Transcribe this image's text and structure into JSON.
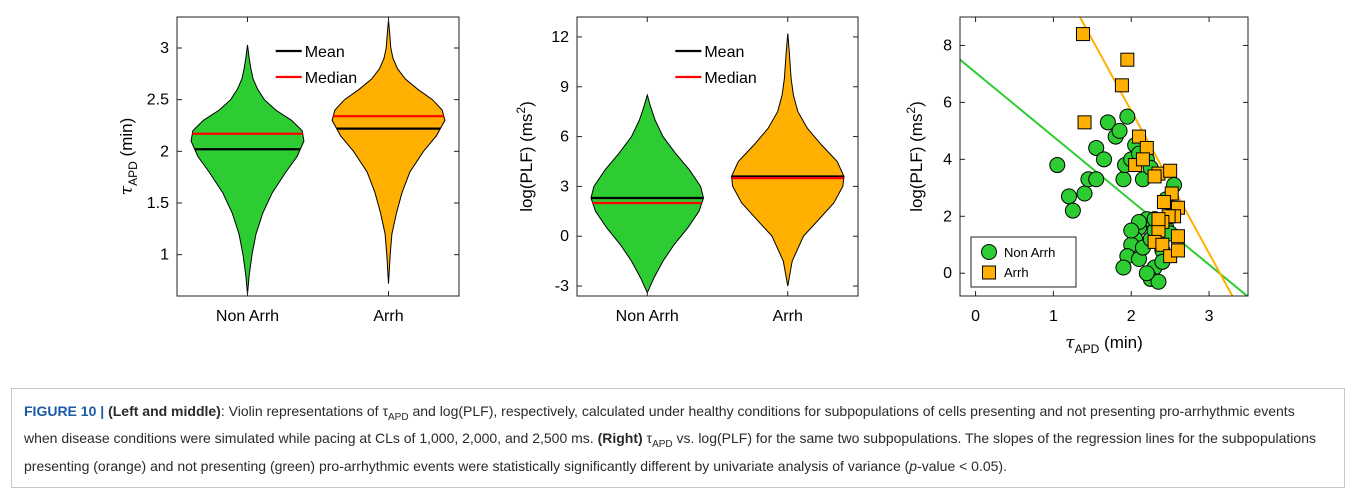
{
  "chart_data": [
    {
      "type": "violin",
      "categories": [
        "Non Arrh",
        "Arrh"
      ],
      "ylabel_symbol": "τ",
      "ylabel_sub": "APD",
      "ylabel_unit": " (min)",
      "ylim": [
        0.6,
        3.3
      ],
      "yticks": [
        1,
        1.5,
        2,
        2.5,
        3
      ],
      "ytick_labels": [
        "1",
        "1.5",
        "2",
        "2.5",
        "3"
      ],
      "series": [
        {
          "name": "Non Arrh",
          "color": "#2ecc33",
          "min": 0.62,
          "max": 3.03,
          "mean": 2.02,
          "median": 2.17,
          "profile": [
            [
              0.62,
              0.0
            ],
            [
              0.8,
              0.03
            ],
            [
              1.0,
              0.08
            ],
            [
              1.2,
              0.15
            ],
            [
              1.4,
              0.27
            ],
            [
              1.6,
              0.44
            ],
            [
              1.8,
              0.68
            ],
            [
              1.95,
              0.88
            ],
            [
              2.1,
              1.0
            ],
            [
              2.2,
              0.97
            ],
            [
              2.3,
              0.78
            ],
            [
              2.4,
              0.5
            ],
            [
              2.5,
              0.3
            ],
            [
              2.6,
              0.18
            ],
            [
              2.7,
              0.1
            ],
            [
              2.8,
              0.06
            ],
            [
              2.9,
              0.03
            ],
            [
              3.03,
              0.0
            ]
          ]
        },
        {
          "name": "Arrh",
          "color": "#ffb000",
          "min": 0.72,
          "max": 3.27,
          "mean": 2.22,
          "median": 2.34,
          "profile": [
            [
              0.72,
              0.0
            ],
            [
              1.0,
              0.03
            ],
            [
              1.2,
              0.06
            ],
            [
              1.4,
              0.14
            ],
            [
              1.6,
              0.24
            ],
            [
              1.8,
              0.38
            ],
            [
              2.0,
              0.62
            ],
            [
              2.15,
              0.85
            ],
            [
              2.3,
              1.0
            ],
            [
              2.4,
              0.95
            ],
            [
              2.5,
              0.78
            ],
            [
              2.6,
              0.52
            ],
            [
              2.7,
              0.3
            ],
            [
              2.8,
              0.16
            ],
            [
              2.9,
              0.08
            ],
            [
              3.0,
              0.04
            ],
            [
              3.15,
              0.02
            ],
            [
              3.27,
              0.0
            ]
          ]
        }
      ],
      "legend": [
        {
          "label": "Mean",
          "color": "#000000"
        },
        {
          "label": "Median",
          "color": "#ff0000"
        }
      ],
      "legend_position": "top"
    },
    {
      "type": "violin",
      "categories": [
        "Non Arrh",
        "Arrh"
      ],
      "ylabel": "log(PLF) (ms",
      "ylabel_sup": "2",
      "ylabel_end": ")",
      "ylim": [
        -3.6,
        13.2
      ],
      "yticks": [
        -3,
        0,
        3,
        6,
        9,
        12
      ],
      "ytick_labels": [
        "-3",
        "0",
        "3",
        "6",
        "9",
        "12"
      ],
      "series": [
        {
          "name": "Non Arrh",
          "color": "#2ecc33",
          "min": -3.4,
          "max": 8.5,
          "mean": 2.3,
          "median": 2.0,
          "profile": [
            [
              -3.4,
              0.0
            ],
            [
              -2.5,
              0.12
            ],
            [
              -1.5,
              0.28
            ],
            [
              -0.5,
              0.48
            ],
            [
              0.5,
              0.72
            ],
            [
              1.5,
              0.92
            ],
            [
              2.3,
              1.0
            ],
            [
              3.0,
              0.95
            ],
            [
              4.0,
              0.75
            ],
            [
              5.0,
              0.5
            ],
            [
              6.0,
              0.28
            ],
            [
              7.0,
              0.14
            ],
            [
              7.8,
              0.06
            ],
            [
              8.5,
              0.0
            ]
          ]
        },
        {
          "name": "Arrh",
          "color": "#ffb000",
          "min": -3.0,
          "max": 12.2,
          "mean": 3.6,
          "median": 3.5,
          "profile": [
            [
              -3.0,
              0.0
            ],
            [
              -1.5,
              0.08
            ],
            [
              0.0,
              0.28
            ],
            [
              1.0,
              0.55
            ],
            [
              2.0,
              0.82
            ],
            [
              3.0,
              0.98
            ],
            [
              3.6,
              1.0
            ],
            [
              4.5,
              0.88
            ],
            [
              5.5,
              0.6
            ],
            [
              6.5,
              0.35
            ],
            [
              7.5,
              0.18
            ],
            [
              8.5,
              0.1
            ],
            [
              9.5,
              0.06
            ],
            [
              11.0,
              0.03
            ],
            [
              12.2,
              0.0
            ]
          ]
        }
      ],
      "legend": [
        {
          "label": "Mean",
          "color": "#000000"
        },
        {
          "label": "Median",
          "color": "#ff0000"
        }
      ],
      "legend_position": "top"
    },
    {
      "type": "scatter",
      "xlabel_symbol": "τ",
      "xlabel_sub": "APD",
      "xlabel_unit": " (min)",
      "ylabel": "log(PLF) (ms",
      "ylabel_sup": "2",
      "ylabel_end": ")",
      "xlim": [
        -0.2,
        3.5
      ],
      "ylim": [
        -0.8,
        9.0
      ],
      "xticks": [
        0,
        1,
        2,
        3
      ],
      "xtick_labels": [
        "0",
        "1",
        "2",
        "3"
      ],
      "yticks": [
        0,
        2,
        4,
        6,
        8
      ],
      "ytick_labels": [
        "0",
        "2",
        "4",
        "6",
        "8"
      ],
      "legend_position": "bottom-left",
      "series": [
        {
          "name": "Non Arrh",
          "color": "#2ecc33",
          "marker": "circle",
          "regression": {
            "slope": -2.25,
            "intercept": 7.05
          },
          "points": [
            [
              1.05,
              3.8
            ],
            [
              1.2,
              2.7
            ],
            [
              1.25,
              2.2
            ],
            [
              1.4,
              2.8
            ],
            [
              1.45,
              3.3
            ],
            [
              1.55,
              3.3
            ],
            [
              1.55,
              4.4
            ],
            [
              1.65,
              4.0
            ],
            [
              1.7,
              5.3
            ],
            [
              1.8,
              4.8
            ],
            [
              1.85,
              5.0
            ],
            [
              1.9,
              3.3
            ],
            [
              1.92,
              3.8
            ],
            [
              1.95,
              5.5
            ],
            [
              2.0,
              4.0
            ],
            [
              2.05,
              4.5
            ],
            [
              2.1,
              4.2
            ],
            [
              2.15,
              3.3
            ],
            [
              2.2,
              4.0
            ],
            [
              2.25,
              3.7
            ],
            [
              2.2,
              1.9
            ],
            [
              2.1,
              1.6
            ],
            [
              2.05,
              1.2
            ],
            [
              2.0,
              1.0
            ],
            [
              1.95,
              0.6
            ],
            [
              1.9,
              0.2
            ],
            [
              2.1,
              0.5
            ],
            [
              2.15,
              0.9
            ],
            [
              2.25,
              1.2
            ],
            [
              2.3,
              1.5
            ],
            [
              2.35,
              1.1
            ],
            [
              2.4,
              0.8
            ],
            [
              2.45,
              1.6
            ],
            [
              2.5,
              1.4
            ],
            [
              2.3,
              0.2
            ],
            [
              2.25,
              -0.2
            ],
            [
              2.35,
              -0.3
            ],
            [
              2.4,
              0.4
            ],
            [
              2.2,
              0.0
            ],
            [
              2.5,
              2.0
            ],
            [
              2.45,
              2.6
            ],
            [
              2.55,
              3.1
            ],
            [
              2.1,
              1.8
            ],
            [
              2.3,
              1.9
            ],
            [
              2.0,
              1.5
            ]
          ]
        },
        {
          "name": "Arrh",
          "color": "#ffb000",
          "marker": "square",
          "regression": {
            "slope": -5.0,
            "intercept": 15.7
          },
          "points": [
            [
              1.38,
              8.4
            ],
            [
              1.95,
              7.5
            ],
            [
              1.88,
              6.6
            ],
            [
              1.4,
              5.3
            ],
            [
              2.1,
              4.8
            ],
            [
              2.2,
              4.4
            ],
            [
              2.05,
              3.8
            ],
            [
              2.15,
              4.0
            ],
            [
              2.35,
              3.5
            ],
            [
              2.3,
              3.4
            ],
            [
              2.5,
              3.6
            ],
            [
              2.52,
              2.8
            ],
            [
              2.6,
              2.3
            ],
            [
              2.55,
              2.0
            ],
            [
              2.48,
              2.0
            ],
            [
              2.4,
              1.8
            ],
            [
              2.6,
              1.3
            ],
            [
              2.35,
              1.5
            ],
            [
              2.3,
              1.1
            ],
            [
              2.4,
              1.0
            ],
            [
              2.5,
              0.6
            ],
            [
              2.6,
              0.8
            ],
            [
              2.42,
              2.5
            ],
            [
              2.35,
              1.9
            ]
          ]
        }
      ]
    }
  ],
  "caption": {
    "fig_label": "FIGURE 10 |",
    "lm_label": "(Left and middle)",
    "text1": ": Violin representations of τ",
    "sub1": "APD",
    "text2": " and log(PLF), respectively, calculated under healthy conditions for subpopulations of cells presenting and not presenting pro-arrhythmic events when disease conditions were simulated while pacing at CLs of 1,000, 2,000, and 2,500 ms. ",
    "right_label": "(Right)",
    "text3": " τ",
    "sub2": "APD",
    "text4": " vs. log(PLF) for the same two subpopulations. The slopes of the regression lines for the subpopulations presenting (orange) and not presenting (green) pro-arrhythmic events were statistically significantly different by univariate analysis of variance (",
    "p_italic": "p",
    "text5": "-value < 0.05)."
  }
}
